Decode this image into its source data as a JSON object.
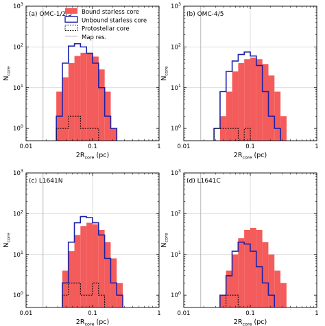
{
  "chart_data": {
    "type": "histogram",
    "x_scale": "log",
    "y_scale": "log",
    "xlim": [
      0.01,
      1
    ],
    "ylim": [
      0.5,
      1000
    ],
    "x_ticks": [
      "0.01",
      "0.1",
      "1"
    ],
    "y_ticks": [
      "10",
      "10",
      "10",
      "10"
    ],
    "y_tick_exponents": [
      "0",
      "1",
      "2",
      "3"
    ],
    "xlabel_main": "2R",
    "xlabel_sub": "core",
    "xlabel_unit": " (pc)",
    "ylabel_main": "N",
    "ylabel_sub": "core",
    "map_res_pc": 0.018,
    "legend": {
      "placement": "top-inside-panel-1",
      "entries": [
        {
          "key": "bound",
          "label": "Bound starless core"
        },
        {
          "key": "unbound",
          "label": "Unbound starless core"
        },
        {
          "key": "proto",
          "label": "Protostellar core"
        },
        {
          "key": "res",
          "label": "Map res."
        }
      ]
    },
    "colors": {
      "bound": "#f45b5b",
      "unbound": "#1c22a8",
      "proto": "#000000",
      "res": "#b0b0b0"
    },
    "bin_log_width": 0.0909,
    "panels": [
      {
        "label": "(a) OMC-1/2/3",
        "bin_start_log": -1.545,
        "bound": [
          8,
          18,
          40,
          60,
          72,
          70,
          58,
          28,
          8,
          1
        ],
        "unbound": [
          2,
          40,
          105,
          120,
          100,
          70,
          40,
          10,
          2,
          1
        ],
        "proto": [
          1,
          1,
          2,
          2,
          1,
          1,
          1,
          0,
          0,
          0
        ]
      },
      {
        "label": "(b) OMC-4/5",
        "bin_start_log": -1.545,
        "bound": [
          0,
          2,
          8,
          25,
          40,
          50,
          55,
          50,
          38,
          20,
          8,
          2
        ],
        "unbound": [
          1,
          8,
          25,
          45,
          65,
          75,
          60,
          35,
          8,
          2,
          1,
          0
        ],
        "proto": [
          1,
          1,
          1,
          1,
          0,
          1,
          0,
          0,
          0,
          0,
          0,
          0
        ]
      },
      {
        "label": "(c) L1641N",
        "bin_start_log": -1.455,
        "bound": [
          4,
          12,
          30,
          50,
          60,
          55,
          40,
          20,
          8,
          2
        ],
        "unbound": [
          2,
          20,
          60,
          85,
          80,
          60,
          30,
          8,
          2,
          1
        ],
        "proto": [
          1,
          2,
          2,
          1,
          1,
          2,
          1,
          0,
          0,
          0
        ]
      },
      {
        "label": "(d) L1641C",
        "bin_start_log": -1.455,
        "bound": [
          1,
          4,
          10,
          25,
          40,
          45,
          40,
          20,
          10,
          4,
          2
        ],
        "unbound": [
          1,
          3,
          12,
          20,
          18,
          12,
          5,
          2,
          1,
          0,
          0
        ],
        "proto": [
          0,
          1,
          1,
          0,
          0,
          0,
          0,
          0,
          0,
          0,
          0
        ]
      }
    ]
  }
}
